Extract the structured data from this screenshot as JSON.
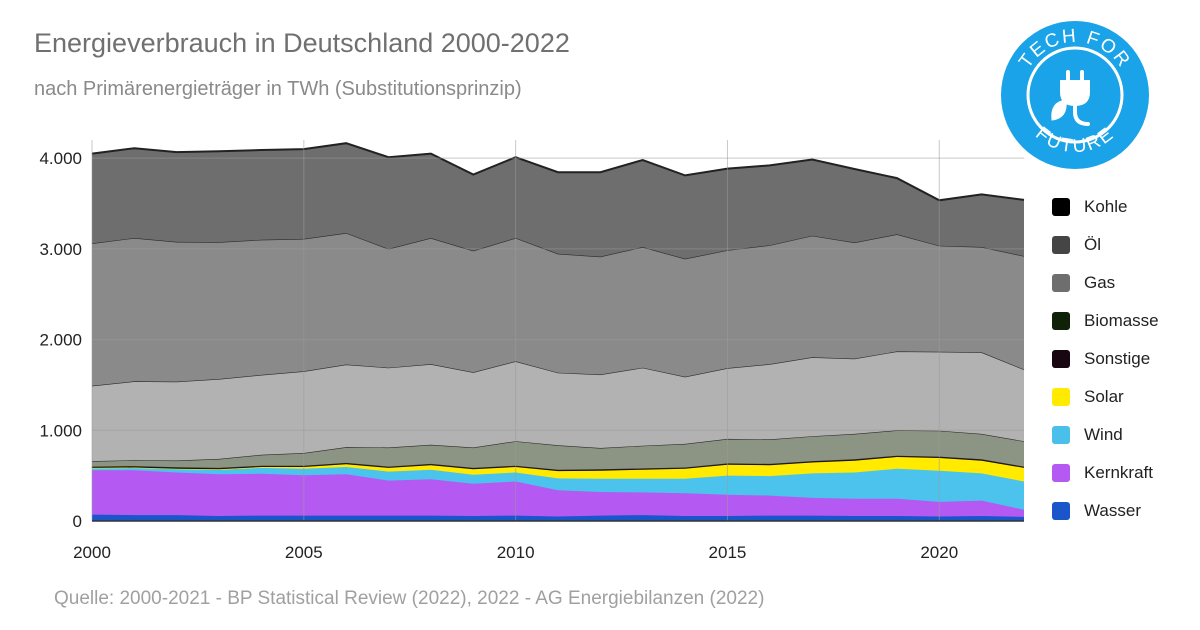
{
  "title": "Energieverbrauch in Deutschland 2000-2022",
  "subtitle": "nach Primärenergieträger in TWh (Substitutionsprinzip)",
  "source": "Quelle: 2000-2021 - BP Statistical Review (2022), 2022 - AG Energiebilanzen (2022)",
  "logo": {
    "text": "TECH FOR FUTURE",
    "color": "#1aa3e8",
    "icon": "plug-leaf-icon"
  },
  "chart_data": {
    "type": "area",
    "stacked": true,
    "x": [
      2000,
      2001,
      2002,
      2003,
      2004,
      2005,
      2006,
      2007,
      2008,
      2009,
      2010,
      2011,
      2012,
      2013,
      2014,
      2015,
      2016,
      2017,
      2018,
      2019,
      2020,
      2021,
      2022
    ],
    "xticks": [
      2000,
      2005,
      2010,
      2015,
      2020
    ],
    "xtick_labels": [
      "2000",
      "2005",
      "2010",
      "2015",
      "2020"
    ],
    "yticks": [
      0,
      1000,
      2000,
      3000,
      4000
    ],
    "ytick_labels": [
      "0",
      "1.000",
      "2.000",
      "3.000",
      "4.000"
    ],
    "ylim": [
      0,
      4200
    ],
    "grid": true,
    "legend_position": "right",
    "series": [
      {
        "name": "Wasser",
        "color": "#1a56c9",
        "values": [
          70,
          65,
          65,
          55,
          60,
          60,
          60,
          60,
          60,
          55,
          60,
          50,
          60,
          65,
          55,
          55,
          60,
          60,
          55,
          55,
          50,
          55,
          45
        ]
      },
      {
        "name": "Kernkraft",
        "color": "#b45af2",
        "values": [
          490,
          495,
          470,
          460,
          460,
          445,
          455,
          385,
          400,
          355,
          375,
          290,
          260,
          250,
          250,
          235,
          220,
          195,
          190,
          190,
          160,
          170,
          80
        ]
      },
      {
        "name": "Wind",
        "color": "#4cc3ec",
        "values": [
          25,
          30,
          40,
          50,
          65,
          70,
          80,
          100,
          105,
          100,
          100,
          130,
          145,
          150,
          160,
          210,
          215,
          270,
          290,
          330,
          345,
          300,
          310
        ]
      },
      {
        "name": "Solar",
        "color": "#ffea00",
        "values": [
          0,
          0,
          2,
          5,
          10,
          20,
          30,
          40,
          50,
          60,
          60,
          80,
          90,
          100,
          110,
          120,
          120,
          120,
          130,
          130,
          140,
          140,
          150
        ]
      },
      {
        "name": "Sonstige",
        "color": "#1a0a12",
        "values": [
          15,
          15,
          15,
          15,
          15,
          15,
          15,
          15,
          15,
          15,
          15,
          15,
          15,
          15,
          15,
          15,
          15,
          15,
          15,
          15,
          15,
          15,
          15
        ]
      },
      {
        "name": "Biomasse",
        "color": "#8c9484",
        "values": [
          60,
          65,
          75,
          100,
          120,
          140,
          175,
          210,
          210,
          225,
          270,
          270,
          235,
          250,
          260,
          270,
          270,
          275,
          280,
          280,
          285,
          280,
          280
        ]
      },
      {
        "name": "Gas",
        "color": "#b2b2b2",
        "values": [
          830,
          870,
          870,
          880,
          880,
          900,
          910,
          880,
          890,
          830,
          880,
          800,
          810,
          860,
          740,
          780,
          830,
          870,
          830,
          870,
          870,
          900,
          790
        ]
      },
      {
        "name": "Öl",
        "color": "#8a8a8a",
        "values": [
          1570,
          1580,
          1540,
          1510,
          1490,
          1460,
          1450,
          1310,
          1390,
          1340,
          1360,
          1310,
          1300,
          1330,
          1300,
          1300,
          1310,
          1340,
          1280,
          1290,
          1170,
          1160,
          1250
        ]
      },
      {
        "name": "Kohle",
        "color": "#6e6e6e",
        "values": [
          990,
          990,
          990,
          1000,
          990,
          990,
          990,
          1010,
          930,
          840,
          890,
          900,
          930,
          960,
          920,
          900,
          880,
          840,
          810,
          620,
          500,
          580,
          620
        ]
      }
    ],
    "legend": [
      {
        "name": "Kohle",
        "color": "#000000"
      },
      {
        "name": "Öl",
        "color": "#454545"
      },
      {
        "name": "Gas",
        "color": "#6e6e6e"
      },
      {
        "name": "Biomasse",
        "color": "#0f2208"
      },
      {
        "name": "Sonstige",
        "color": "#180610"
      },
      {
        "name": "Solar",
        "color": "#ffea00"
      },
      {
        "name": "Wind",
        "color": "#48c0ea"
      },
      {
        "name": "Kernkraft",
        "color": "#b45af2"
      },
      {
        "name": "Wasser",
        "color": "#1a56c9"
      }
    ]
  }
}
